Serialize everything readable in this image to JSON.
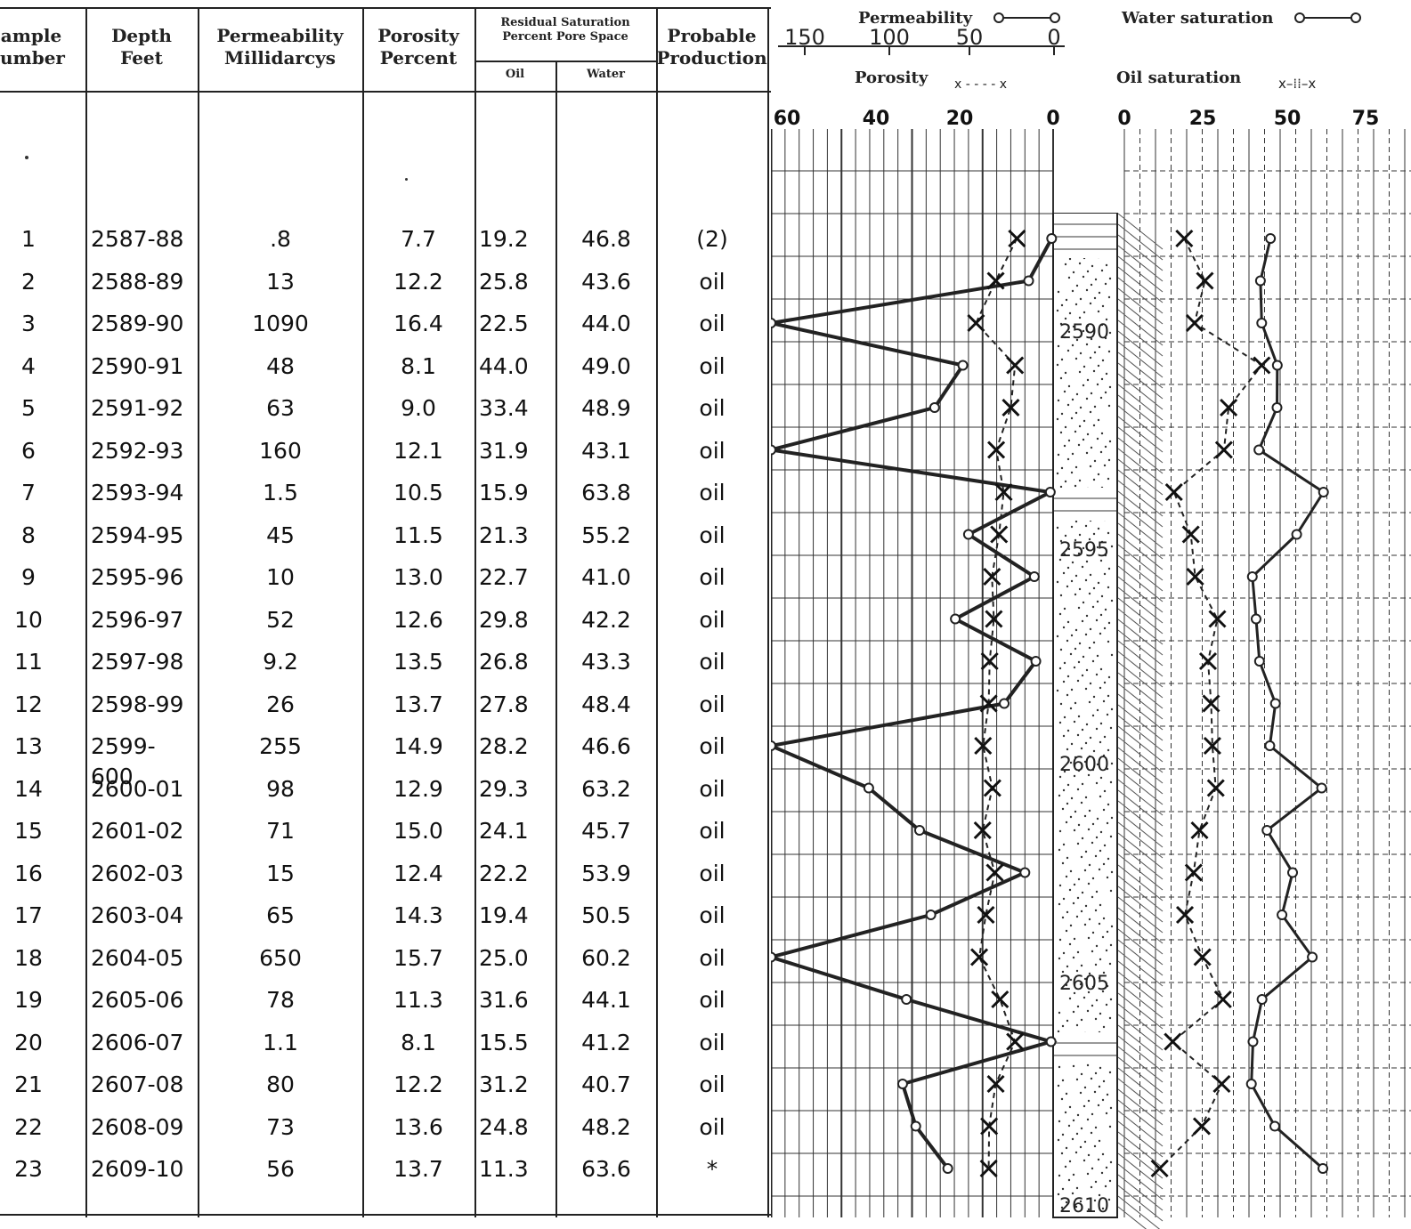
{
  "table": {
    "headers": {
      "sample_line1": "ample",
      "sample_line2": "umber",
      "depth_line1": "Depth",
      "depth_line2": "Feet",
      "perm_line1": "Permeability",
      "perm_line2": "Millidarcys",
      "por_line1": "Porosity",
      "por_line2": "Percent",
      "resid_line1": "Residual Saturation",
      "resid_line2": "Percent Pore Space",
      "oil": "Oil",
      "water": "Water",
      "prod_line1": "Probable",
      "prod_line2": "Production"
    },
    "rows": [
      {
        "sample": "1",
        "depth": "2587-88",
        "perm": ".8",
        "porosity": "7.7",
        "oil": "19.2",
        "water": "46.8",
        "production": "(2)"
      },
      {
        "sample": "2",
        "depth": "2588-89",
        "perm": "13",
        "porosity": "12.2",
        "oil": "25.8",
        "water": "43.6",
        "production": "oil"
      },
      {
        "sample": "3",
        "depth": "2589-90",
        "perm": "1090",
        "porosity": "16.4",
        "oil": "22.5",
        "water": "44.0",
        "production": "oil"
      },
      {
        "sample": "4",
        "depth": "2590-91",
        "perm": "48",
        "porosity": "8.1",
        "oil": "44.0",
        "water": "49.0",
        "production": "oil"
      },
      {
        "sample": "5",
        "depth": "2591-92",
        "perm": "63",
        "porosity": "9.0",
        "oil": "33.4",
        "water": "48.9",
        "production": "oil"
      },
      {
        "sample": "6",
        "depth": "2592-93",
        "perm": "160",
        "porosity": "12.1",
        "oil": "31.9",
        "water": "43.1",
        "production": "oil"
      },
      {
        "sample": "7",
        "depth": "2593-94",
        "perm": "1.5",
        "porosity": "10.5",
        "oil": "15.9",
        "water": "63.8",
        "production": "oil"
      },
      {
        "sample": "8",
        "depth": "2594-95",
        "perm": "45",
        "porosity": "11.5",
        "oil": "21.3",
        "water": "55.2",
        "production": "oil"
      },
      {
        "sample": "9",
        "depth": "2595-96",
        "perm": "10",
        "porosity": "13.0",
        "oil": "22.7",
        "water": "41.0",
        "production": "oil"
      },
      {
        "sample": "10",
        "depth": "2596-97",
        "perm": "52",
        "porosity": "12.6",
        "oil": "29.8",
        "water": "42.2",
        "production": "oil"
      },
      {
        "sample": "11",
        "depth": "2597-98",
        "perm": "9.2",
        "porosity": "13.5",
        "oil": "26.8",
        "water": "43.3",
        "production": "oil"
      },
      {
        "sample": "12",
        "depth": "2598-99",
        "perm": "26",
        "porosity": "13.7",
        "oil": "27.8",
        "water": "48.4",
        "production": "oil"
      },
      {
        "sample": "13",
        "depth": "2599-600",
        "perm": "255",
        "porosity": "14.9",
        "oil": "28.2",
        "water": "46.6",
        "production": "oil"
      },
      {
        "sample": "14",
        "depth": "2600-01",
        "perm": "98",
        "porosity": "12.9",
        "oil": "29.3",
        "water": "63.2",
        "production": "oil"
      },
      {
        "sample": "15",
        "depth": "2601-02",
        "perm": "71",
        "porosity": "15.0",
        "oil": "24.1",
        "water": "45.7",
        "production": "oil"
      },
      {
        "sample": "16",
        "depth": "2602-03",
        "perm": "15",
        "porosity": "12.4",
        "oil": "22.2",
        "water": "53.9",
        "production": "oil"
      },
      {
        "sample": "17",
        "depth": "2603-04",
        "perm": "65",
        "porosity": "14.3",
        "oil": "19.4",
        "water": "50.5",
        "production": "oil"
      },
      {
        "sample": "18",
        "depth": "2604-05",
        "perm": "650",
        "porosity": "15.7",
        "oil": "25.0",
        "water": "60.2",
        "production": "oil"
      },
      {
        "sample": "19",
        "depth": "2605-06",
        "perm": "78",
        "porosity": "11.3",
        "oil": "31.6",
        "water": "44.1",
        "production": "oil"
      },
      {
        "sample": "20",
        "depth": "2606-07",
        "perm": "1.1",
        "porosity": "8.1",
        "oil": "15.5",
        "water": "41.2",
        "production": "oil"
      },
      {
        "sample": "21",
        "depth": "2607-08",
        "perm": "80",
        "porosity": "12.2",
        "oil": "31.2",
        "water": "40.7",
        "production": "oil"
      },
      {
        "sample": "22",
        "depth": "2608-09",
        "perm": "73",
        "porosity": "13.6",
        "oil": "24.8",
        "water": "48.2",
        "production": "oil"
      },
      {
        "sample": "23",
        "depth": "2609-10",
        "perm": "56",
        "porosity": "13.7",
        "oil": "11.3",
        "water": "63.6",
        "production": "*"
      }
    ]
  },
  "chart": {
    "legend": {
      "permeability": "Permeability",
      "porosity": "Porosity",
      "water_saturation": "Water saturation",
      "oil_saturation": "Oil saturation"
    },
    "perm_scale_ticks": [
      "150",
      "100",
      "50",
      "0"
    ],
    "left_scale_ticks": [
      "60",
      "40",
      "20",
      "0"
    ],
    "right_scale_ticks": [
      "0",
      "25",
      "50",
      "75"
    ],
    "depth_labels": [
      "2590",
      "2595",
      "2600",
      "2605",
      "2610"
    ],
    "colors": {
      "ink": "#222222",
      "paper": "#ffffff"
    }
  },
  "chart_data": {
    "type": "line",
    "x": [
      1,
      2,
      3,
      4,
      5,
      6,
      7,
      8,
      9,
      10,
      11,
      12,
      13,
      14,
      15,
      16,
      17,
      18,
      19,
      20,
      21,
      22,
      23
    ],
    "series": [
      {
        "name": "Permeability",
        "values": [
          0.8,
          13,
          1090,
          48,
          63,
          160,
          1.5,
          45,
          10,
          52,
          9.2,
          26,
          255,
          98,
          71,
          15,
          65,
          650,
          78,
          1.1,
          80,
          73,
          56
        ]
      },
      {
        "name": "Porosity",
        "values": [
          7.7,
          12.2,
          16.4,
          8.1,
          9.0,
          12.1,
          10.5,
          11.5,
          13.0,
          12.6,
          13.5,
          13.7,
          14.9,
          12.9,
          15.0,
          12.4,
          14.3,
          15.7,
          11.3,
          8.1,
          12.2,
          13.6,
          13.7
        ]
      },
      {
        "name": "Oil saturation",
        "values": [
          19.2,
          25.8,
          22.5,
          44.0,
          33.4,
          31.9,
          15.9,
          21.3,
          22.7,
          29.8,
          26.8,
          27.8,
          28.2,
          29.3,
          24.1,
          22.2,
          19.4,
          25.0,
          31.6,
          15.5,
          31.2,
          24.8,
          11.3
        ]
      },
      {
        "name": "Water saturation",
        "values": [
          46.8,
          43.6,
          44.0,
          49.0,
          48.9,
          43.1,
          63.8,
          55.2,
          41.0,
          42.2,
          43.3,
          48.4,
          46.6,
          63.2,
          45.7,
          53.9,
          50.5,
          60.2,
          44.1,
          41.2,
          40.7,
          48.2,
          63.6
        ]
      }
    ],
    "perm_axis": [
      150,
      0
    ],
    "porosity_axis": [
      60,
      0
    ],
    "saturation_axis": [
      0,
      75
    ]
  }
}
